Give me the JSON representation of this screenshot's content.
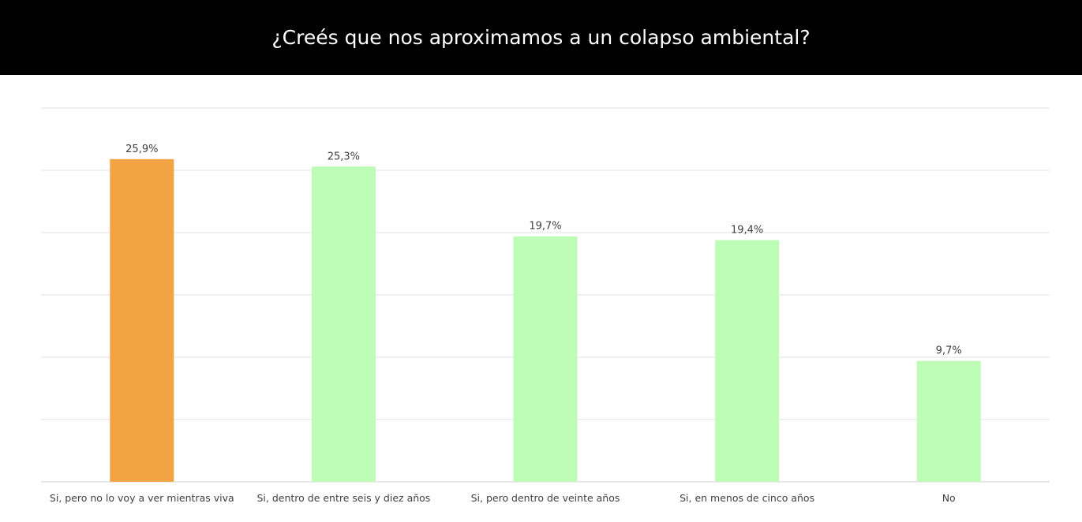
{
  "chart_data": {
    "type": "bar",
    "title": "¿Creés que nos aproximamos a un colapso ambiental?",
    "categories": [
      "Si, pero no lo voy a ver mientras viva",
      "Si, dentro de entre seis y diez años",
      "Si, pero dentro de veinte años",
      "Si, en menos de cinco años",
      "No"
    ],
    "values": [
      25.9,
      25.3,
      19.7,
      19.4,
      9.7
    ],
    "data_labels": [
      "25,9%",
      "25,3%",
      "19,7%",
      "19,4%",
      "9,7%"
    ],
    "colors": [
      "#F2A445",
      "#BDFDB5",
      "#BDFDB5",
      "#BDFDB5",
      "#BDFDB5"
    ],
    "xlabel": "",
    "ylabel": "",
    "ylim": [
      0,
      30
    ],
    "grid_step": 5,
    "grid": true,
    "legend": "none"
  }
}
